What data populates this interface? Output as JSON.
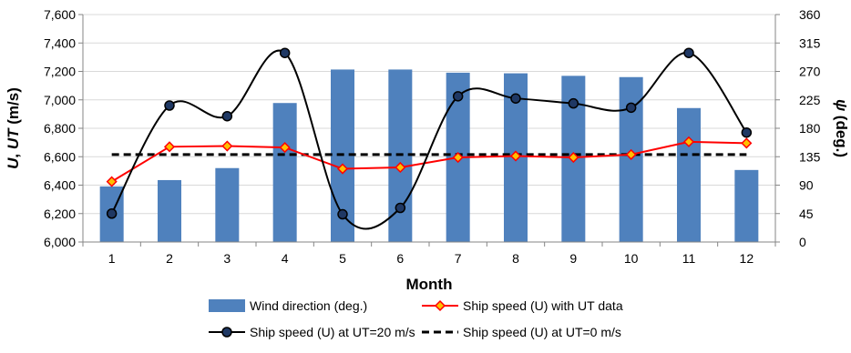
{
  "chart_data": {
    "type": "bar+line",
    "categories": [
      "1",
      "2",
      "3",
      "4",
      "5",
      "6",
      "7",
      "8",
      "9",
      "10",
      "11",
      "12"
    ],
    "xlabel": "Month",
    "ylabel_left_parts": [
      {
        "text": "U",
        "style": "italic"
      },
      {
        "text": ", ",
        "style": "normal"
      },
      {
        "text": "UT",
        "style": "italic"
      },
      {
        "text": " (m/s)",
        "style": "normal"
      }
    ],
    "ylabel_right_parts": [
      {
        "text": "ψ",
        "style": "italic"
      },
      {
        "text": " (deg.)",
        "style": "normal"
      }
    ],
    "left_axis": {
      "min": 6000,
      "max": 7600,
      "ticks": [
        6000,
        6200,
        6400,
        6600,
        6800,
        7000,
        7200,
        7400,
        7600
      ],
      "tick_labels": [
        "6,000",
        "6,200",
        "6,400",
        "6,600",
        "6,800",
        "7,000",
        "7,200",
        "7,400",
        "7,600"
      ]
    },
    "right_axis": {
      "min": 0,
      "max": 360,
      "ticks": [
        0,
        45,
        90,
        135,
        180,
        225,
        270,
        315,
        360
      ],
      "tick_labels": [
        "0",
        "45",
        "90",
        "135",
        "180",
        "225",
        "270",
        "315",
        "360"
      ]
    },
    "grid": true,
    "legend_position": "bottom",
    "series": [
      {
        "name": "Wind direction (deg.)",
        "kind": "bar",
        "axis": "right",
        "color": "#4F81BD",
        "values": [
          88,
          98,
          117,
          220,
          273,
          273,
          268,
          267,
          263,
          261,
          212,
          114
        ]
      },
      {
        "name": "Ship speed (U) with UT data",
        "kind": "line",
        "axis": "left",
        "color": "#FF0000",
        "marker": "diamond",
        "marker_fill": "#FFC000",
        "values": [
          6425,
          6670,
          6675,
          6665,
          6515,
          6525,
          6595,
          6605,
          6595,
          6615,
          6705,
          6695
        ]
      },
      {
        "name": "Ship speed (U) at UT=20 m/s",
        "kind": "smooth-line",
        "axis": "left",
        "color": "#000000",
        "marker": "circle",
        "marker_fill": "#1F3864",
        "values": [
          6200,
          6960,
          6885,
          7330,
          6195,
          6240,
          7025,
          7010,
          6975,
          6945,
          7330,
          6770
        ]
      },
      {
        "name": "Ship speed (U) at UT=0 m/s",
        "kind": "dashed-line",
        "axis": "left",
        "color": "#000000",
        "values": [
          6615,
          6615,
          6615,
          6615,
          6615,
          6615,
          6615,
          6615,
          6615,
          6615,
          6615,
          6615
        ]
      }
    ]
  }
}
